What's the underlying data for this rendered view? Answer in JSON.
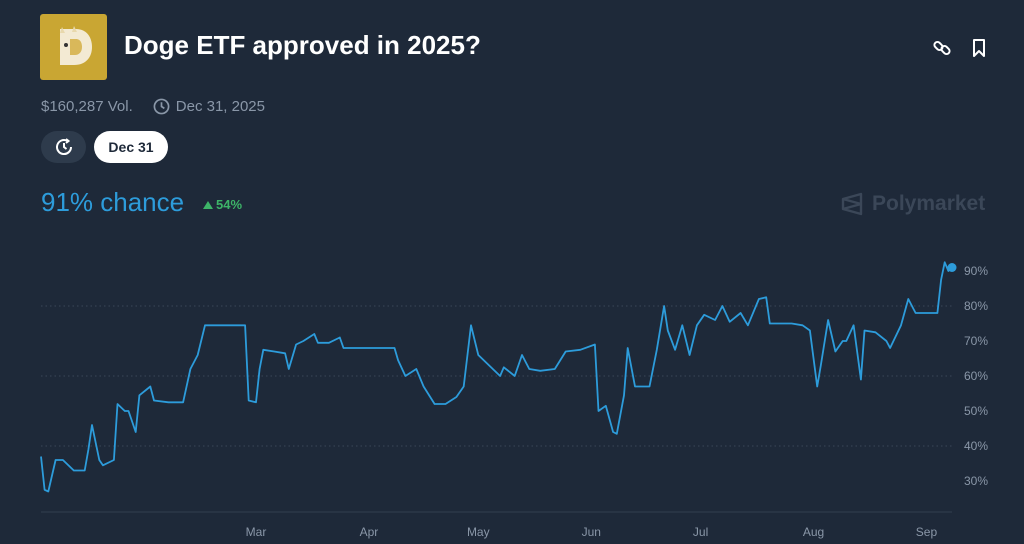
{
  "header": {
    "title": "Doge ETF approved in 2025?",
    "logo_icon": "doge-coin-logo",
    "actions": [
      {
        "icon": "link-icon"
      },
      {
        "icon": "bookmark-icon"
      }
    ]
  },
  "meta": {
    "volume": "$160,287 Vol.",
    "end_date": "Dec 31, 2025"
  },
  "filters": {
    "history_icon": "history-clock-icon",
    "selected_date": "Dec 31"
  },
  "summary": {
    "chance": "91% chance",
    "delta": "54%",
    "delta_direction": "up"
  },
  "brand": {
    "name": "Polymarket"
  },
  "colors": {
    "background": "#1e2939",
    "line": "#2d9cdb",
    "positive": "#3db468",
    "muted": "#8a97a8"
  },
  "chart_data": {
    "type": "line",
    "xlabel": "",
    "ylabel": "",
    "xlim": [
      "2025-01-01",
      "2025-09-08"
    ],
    "ylim": [
      24,
      95
    ],
    "y_ticks": [
      "30%",
      "40%",
      "50%",
      "60%",
      "70%",
      "80%",
      "90%"
    ],
    "y_tick_values": [
      30,
      40,
      50,
      60,
      70,
      80,
      90
    ],
    "x_ticks": [
      "Mar",
      "Apr",
      "May",
      "Jun",
      "Jul",
      "Aug",
      "Sep"
    ],
    "x_tick_dates": [
      "2025-03-01",
      "2025-04-01",
      "2025-05-01",
      "2025-06-01",
      "2025-07-01",
      "2025-08-01",
      "2025-09-01"
    ],
    "grid_values": [
      40,
      60,
      80
    ],
    "grid": "dotted horizontal",
    "y_axis_side": "right",
    "series": [
      {
        "x": [
          "2025-01-01",
          "2025-01-02",
          "2025-01-03",
          "2025-01-05",
          "2025-01-07",
          "2025-01-10",
          "2025-01-13",
          "2025-01-14",
          "2025-01-15",
          "2025-01-17",
          "2025-01-18",
          "2025-01-21",
          "2025-01-22",
          "2025-01-24",
          "2025-01-25",
          "2025-01-27",
          "2025-01-28",
          "2025-01-31",
          "2025-02-01",
          "2025-02-05",
          "2025-02-09",
          "2025-02-11",
          "2025-02-13",
          "2025-02-15",
          "2025-02-17",
          "2025-02-26",
          "2025-02-27",
          "2025-03-01",
          "2025-03-02",
          "2025-03-03",
          "2025-03-06",
          "2025-03-09",
          "2025-03-10",
          "2025-03-12",
          "2025-03-14",
          "2025-03-17",
          "2025-03-18",
          "2025-03-21",
          "2025-03-24",
          "2025-03-25",
          "2025-04-08",
          "2025-04-09",
          "2025-04-11",
          "2025-04-14",
          "2025-04-16",
          "2025-04-19",
          "2025-04-22",
          "2025-04-25",
          "2025-04-27",
          "2025-04-29",
          "2025-05-01",
          "2025-05-04",
          "2025-05-07",
          "2025-05-08",
          "2025-05-11",
          "2025-05-13",
          "2025-05-15",
          "2025-05-18",
          "2025-05-22",
          "2025-05-25",
          "2025-05-29",
          "2025-06-02",
          "2025-06-03",
          "2025-06-05",
          "2025-06-07",
          "2025-06-08",
          "2025-06-10",
          "2025-06-11",
          "2025-06-13",
          "2025-06-17",
          "2025-06-19",
          "2025-06-21",
          "2025-06-22",
          "2025-06-24",
          "2025-06-26",
          "2025-06-28",
          "2025-06-30",
          "2025-07-02",
          "2025-07-05",
          "2025-07-07",
          "2025-07-09",
          "2025-07-12",
          "2025-07-14",
          "2025-07-17",
          "2025-07-19",
          "2025-07-20",
          "2025-07-26",
          "2025-07-29",
          "2025-07-31",
          "2025-08-02",
          "2025-08-03",
          "2025-08-05",
          "2025-08-07",
          "2025-08-09",
          "2025-08-10",
          "2025-08-12",
          "2025-08-14",
          "2025-08-15",
          "2025-08-18",
          "2025-08-21",
          "2025-08-22",
          "2025-08-25",
          "2025-08-27",
          "2025-08-29",
          "2025-09-04",
          "2025-09-05",
          "2025-09-06",
          "2025-09-07",
          "2025-09-08"
        ],
        "y": [
          37,
          27.5,
          27,
          36,
          36,
          33,
          33,
          39,
          46,
          36,
          34.5,
          36,
          52,
          50,
          50,
          44,
          54.5,
          57,
          53,
          52.5,
          52.5,
          62,
          66,
          74.5,
          74.5,
          74.5,
          53,
          52.5,
          62,
          67.5,
          67,
          66.5,
          62,
          69,
          70,
          72,
          69.5,
          69.5,
          71,
          68,
          68,
          64.5,
          60,
          62,
          57,
          52,
          52,
          54,
          57,
          74.5,
          66,
          63,
          60,
          62.5,
          60,
          66,
          62,
          61.5,
          62,
          67,
          67.5,
          69,
          50,
          51.5,
          44,
          43.5,
          54.5,
          68,
          57,
          57,
          67.5,
          80,
          73,
          67.5,
          74.5,
          66,
          74.5,
          77.5,
          76,
          80,
          75.5,
          78,
          74.5,
          82,
          82.5,
          75,
          75,
          74.5,
          73,
          57,
          63,
          76,
          67,
          70,
          70,
          74.5,
          59,
          73,
          72.5,
          70,
          68,
          74.5,
          82,
          78,
          78,
          87.5,
          92.5,
          90,
          91
        ]
      }
    ]
  }
}
